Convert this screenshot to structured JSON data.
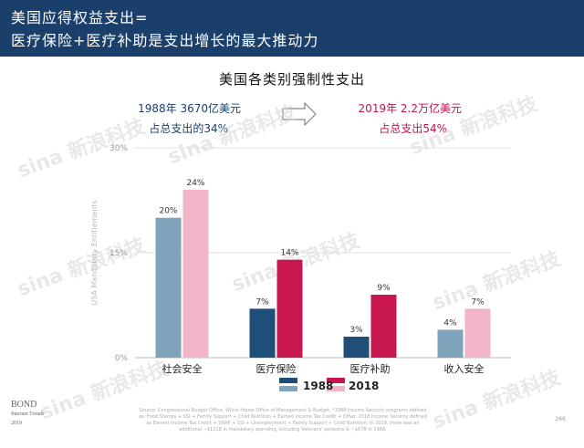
{
  "header": {
    "line1": "美国应得权益支出=",
    "line2": "医疗保险+医疗补助是支出增长的最大推动力"
  },
  "annotations": {
    "left_line1": "1988年  3670亿美元",
    "left_line2": "占总支出的34%",
    "right_line1": "2019年  2.2万亿美元",
    "right_line2": "占总支出54%"
  },
  "watermark": "sina 新浪科技",
  "footer": {
    "source": "Source: Congressional Budget Office, White House Office of Management & Budget. *1988 Income Security programs defined as: Food Stamps + SSI + Family Support + Child Nutrition + Earned Income Tax Credit + Other. 2018 Income Security defined as Earned Income Tax Credit + SNAP + SSI + Unemployment + Family Support + Child Nutrition. In 2018, there was an additional ~$121B in mandatory spending, including Veterans' pensions & ~$67B in 1988.",
    "page": "266",
    "brand_line1": "BOND",
    "brand_line2": "Internet Trends",
    "brand_line3": "2019"
  },
  "colors": {
    "header_bg": "#1a3f6b",
    "1988_primary": "#1f4e79",
    "1988_secondary": "#7fa3bb",
    "2018_primary": "#c8174f",
    "2018_secondary": "#f2b4c7"
  },
  "chart_data": {
    "type": "bar",
    "title": "美国各类别强制性支出",
    "ylabel": "USA Mandatory Entitlements",
    "ylim": [
      0,
      30
    ],
    "yticks": [
      "0%",
      "15%",
      "30%"
    ],
    "grid": true,
    "legend_position": "bottom",
    "categories": [
      "社会安全",
      "医疗保险",
      "医疗补助",
      "收入安全"
    ],
    "series": [
      {
        "name": "1988",
        "values": [
          20,
          7,
          3,
          4
        ],
        "labels": [
          "20%",
          "7%",
          "3%",
          "4%"
        ]
      },
      {
        "name": "2018",
        "values": [
          24,
          14,
          9,
          7
        ],
        "labels": [
          "24%",
          "14%",
          "9%",
          "7%"
        ]
      }
    ]
  }
}
